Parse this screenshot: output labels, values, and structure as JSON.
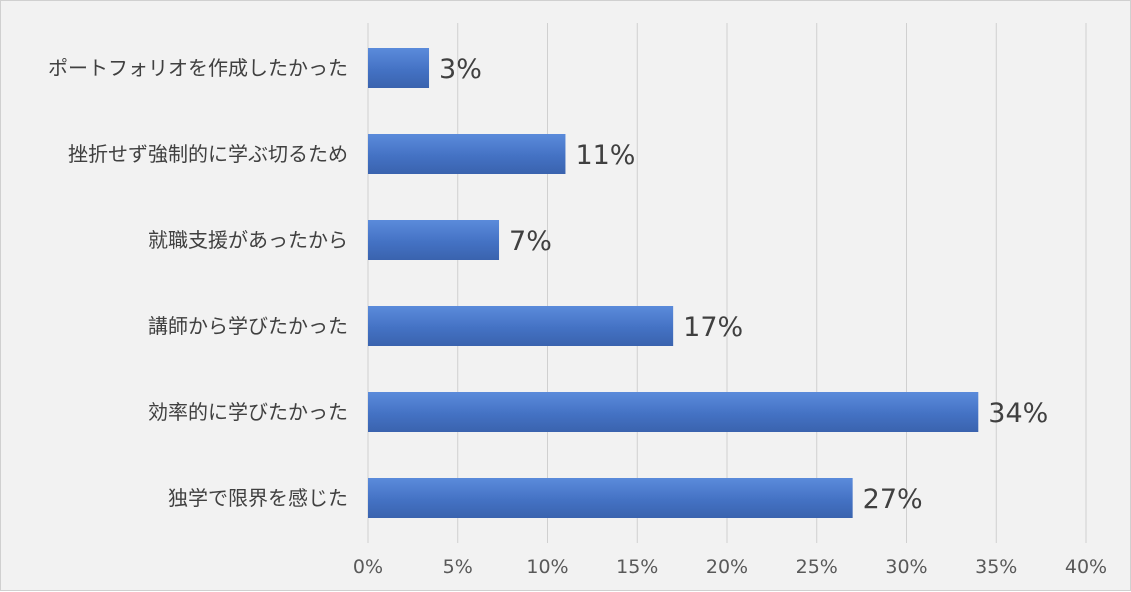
{
  "chart_data": {
    "type": "bar",
    "orientation": "horizontal",
    "title": "",
    "xlabel": "",
    "ylabel": "",
    "categories": [
      "ポートフォリオを作成したかった",
      "挫折せず強制的に学ぶ切るため",
      "就職支援があったから",
      "講師から学びたかった",
      "効率的に学びたかった",
      "独学で限界を感じた"
    ],
    "values": [
      3.4,
      11,
      7.3,
      17,
      34,
      27
    ],
    "data_labels": [
      "3%",
      "11%",
      "7%",
      "17%",
      "34%",
      "27%"
    ],
    "xlim": [
      0,
      40
    ],
    "ticks": [
      0,
      5,
      10,
      15,
      20,
      25,
      30,
      35,
      40
    ],
    "tick_labels": [
      "0%",
      "5%",
      "10%",
      "15%",
      "20%",
      "25%",
      "30%",
      "35%",
      "40%"
    ],
    "grid": true,
    "legend": false,
    "bar_color": "#4472c4",
    "grid_color": "#d0d0d0"
  }
}
